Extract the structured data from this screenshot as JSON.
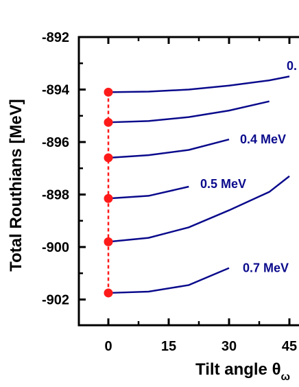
{
  "chart_data": {
    "type": "line",
    "ylabel": "Total Routhians [MeV]",
    "xlabel_text": "Tilt angle θ",
    "xlabel_subscript": "ω",
    "x_ticks": [
      0,
      15,
      30,
      45
    ],
    "y_ticks": [
      -892,
      -894,
      -896,
      -898,
      -900,
      -902
    ],
    "xlim": [
      -7,
      45
    ],
    "ylim": [
      -903,
      -892
    ],
    "grid": false,
    "series": [
      {
        "label": "0.",
        "color": "#0a0a8c",
        "x": [
          0,
          10,
          20,
          30,
          40,
          45
        ],
        "y": [
          -894.1,
          -894.08,
          -894.0,
          -893.85,
          -893.65,
          -893.5
        ]
      },
      {
        "label": "",
        "color": "#0a0a8c",
        "x": [
          0,
          10,
          20,
          30,
          40
        ],
        "y": [
          -895.25,
          -895.2,
          -895.05,
          -894.8,
          -894.45
        ]
      },
      {
        "label": "0.4 MeV",
        "color": "#0a0a8c",
        "x": [
          0,
          10,
          20,
          30
        ],
        "y": [
          -896.6,
          -896.5,
          -896.3,
          -895.9
        ]
      },
      {
        "label": "0.5 MeV",
        "color": "#0a0a8c",
        "x": [
          0,
          10,
          20
        ],
        "y": [
          -898.15,
          -898.05,
          -897.7
        ]
      },
      {
        "label": "",
        "color": "#0a0a8c",
        "x": [
          0,
          10,
          20,
          30,
          40,
          45
        ],
        "y": [
          -899.8,
          -899.65,
          -899.25,
          -898.6,
          -897.9,
          -897.3
        ]
      },
      {
        "label": "0.7 MeV",
        "color": "#0a0a8c",
        "x": [
          0,
          10,
          20,
          30
        ],
        "y": [
          -901.75,
          -901.7,
          -901.45,
          -900.8
        ]
      }
    ],
    "markers": {
      "color": "#ff1a1a",
      "x": 0,
      "y": [
        -894.1,
        -895.25,
        -896.6,
        -898.15,
        -899.8,
        -901.75
      ]
    },
    "marker_connector": "dashed"
  }
}
